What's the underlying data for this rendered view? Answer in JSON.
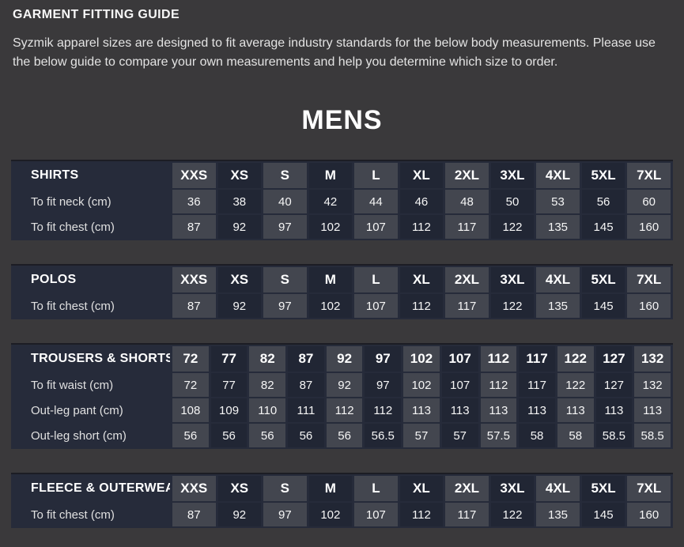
{
  "page": {
    "title": "GARMENT FITTING GUIDE",
    "intro": "Syzmik apparel sizes are designed to fit average industry standards for the below body measurements. Please use the below guide to compare your own measurements and help you determine which size to order.",
    "section_title": "MENS"
  },
  "colors": {
    "page_bg": "#3a393b",
    "table_bg": "#262b3a",
    "column_light": "#43464f",
    "column_dark": "#212634",
    "text": "#ffffff"
  },
  "tables": [
    {
      "name": "SHIRTS",
      "sizes": [
        "XXS",
        "XS",
        "S",
        "M",
        "L",
        "XL",
        "2XL",
        "3XL",
        "4XL",
        "5XL",
        "7XL"
      ],
      "rows": [
        {
          "label": "To fit neck (cm)",
          "values": [
            "36",
            "38",
            "40",
            "42",
            "44",
            "46",
            "48",
            "50",
            "53",
            "56",
            "60"
          ]
        },
        {
          "label": "To fit chest (cm)",
          "values": [
            "87",
            "92",
            "97",
            "102",
            "107",
            "112",
            "117",
            "122",
            "135",
            "145",
            "160"
          ]
        }
      ]
    },
    {
      "name": "POLOS",
      "sizes": [
        "XXS",
        "XS",
        "S",
        "M",
        "L",
        "XL",
        "2XL",
        "3XL",
        "4XL",
        "5XL",
        "7XL"
      ],
      "rows": [
        {
          "label": "To fit chest (cm)",
          "values": [
            "87",
            "92",
            "97",
            "102",
            "107",
            "112",
            "117",
            "122",
            "135",
            "145",
            "160"
          ]
        }
      ]
    },
    {
      "name": "TROUSERS & SHORTS",
      "sizes": [
        "72",
        "77",
        "82",
        "87",
        "92",
        "97",
        "102",
        "107",
        "112",
        "117",
        "122",
        "127",
        "132"
      ],
      "rows": [
        {
          "label": "To fit waist (cm)",
          "values": [
            "72",
            "77",
            "82",
            "87",
            "92",
            "97",
            "102",
            "107",
            "112",
            "117",
            "122",
            "127",
            "132"
          ]
        },
        {
          "label": "Out-leg pant (cm)",
          "values": [
            "108",
            "109",
            "110",
            "111",
            "112",
            "112",
            "113",
            "113",
            "113",
            "113",
            "113",
            "113",
            "113"
          ]
        },
        {
          "label": "Out-leg short (cm)",
          "values": [
            "56",
            "56",
            "56",
            "56",
            "56",
            "56.5",
            "57",
            "57",
            "57.5",
            "58",
            "58",
            "58.5",
            "58.5"
          ]
        }
      ]
    },
    {
      "name": "FLEECE & OUTERWEAR",
      "sizes": [
        "XXS",
        "XS",
        "S",
        "M",
        "L",
        "XL",
        "2XL",
        "3XL",
        "4XL",
        "5XL",
        "7XL"
      ],
      "rows": [
        {
          "label": "To fit chest (cm)",
          "values": [
            "87",
            "92",
            "97",
            "102",
            "107",
            "112",
            "117",
            "122",
            "135",
            "145",
            "160"
          ]
        }
      ]
    }
  ]
}
